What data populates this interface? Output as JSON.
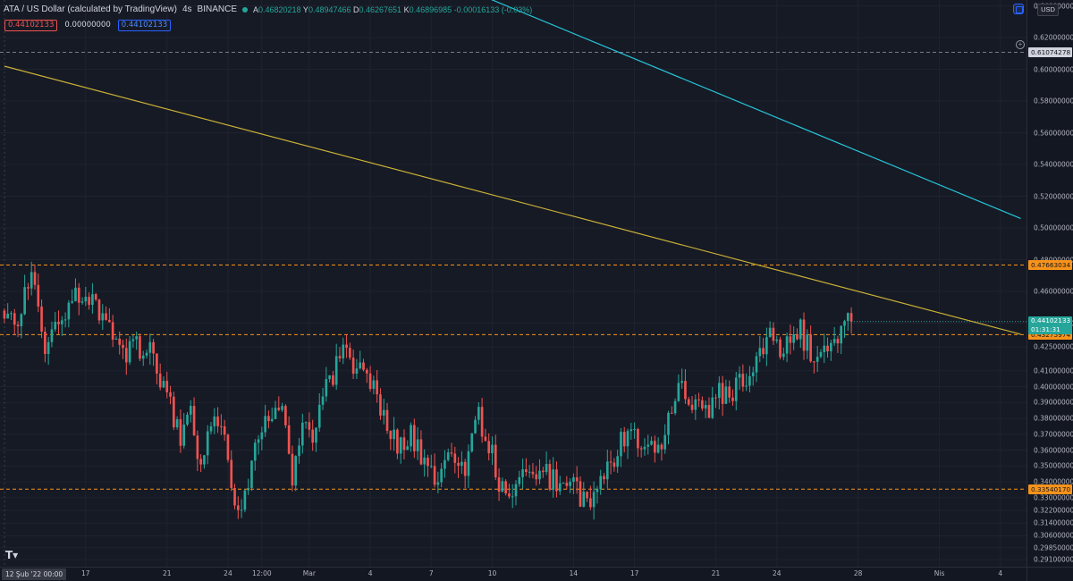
{
  "legend": {
    "symbol": "ATA / US Dollar (calculated by TradingView)",
    "interval": "4s",
    "exchange": "BINANCE",
    "open_label": "A",
    "open": "0.46820218",
    "high_label": "Y",
    "high": "0.48947466",
    "low_label": "D",
    "low": "0.46267651",
    "close_label": "K",
    "close": "0.46896985",
    "change": "-0.00016133 (-0.03%)"
  },
  "indicator_row": [
    "0.44102133",
    "0.00000000",
    "0.44102133"
  ],
  "currency_button": "USD",
  "colors": {
    "up": "#26a69a",
    "down": "#ef5350",
    "trend1": "#c9b037",
    "trend2": "#26c6da",
    "level": "#f7931a"
  },
  "chart_data": {
    "type": "candlestick",
    "symbol": "ATA/USD",
    "ylim": [
      0.2865,
      0.6437
    ],
    "y_ticks": [
      "0.29100000",
      "0.29850000",
      "0.30600000",
      "0.31400000",
      "0.32200000",
      "0.33000000",
      "0.34000000",
      "0.35000000",
      "0.36000000",
      "0.37000000",
      "0.38000000",
      "0.39000000",
      "0.40000000",
      "0.41000000",
      "0.42500000",
      "0.44000000",
      "0.46000000",
      "0.48000000",
      "0.50000000",
      "0.52000000",
      "0.54000000",
      "0.56000000",
      "0.58000000",
      "0.60000000",
      "0.62000000",
      "0.64000000"
    ],
    "x_ticks": [
      {
        "label": "17",
        "bar": 24
      },
      {
        "label": "21",
        "bar": 48
      },
      {
        "label": "24",
        "bar": 66
      },
      {
        "label": "12:00",
        "bar": 76
      },
      {
        "label": "Mar",
        "bar": 90
      },
      {
        "label": "4",
        "bar": 108
      },
      {
        "label": "7",
        "bar": 126
      },
      {
        "label": "10",
        "bar": 144
      },
      {
        "label": "14",
        "bar": 168
      },
      {
        "label": "17",
        "bar": 186
      },
      {
        "label": "21",
        "bar": 210
      },
      {
        "label": "24",
        "bar": 228
      },
      {
        "label": "28",
        "bar": 252
      },
      {
        "label": "Nis",
        "bar": 276
      },
      {
        "label": "4",
        "bar": 294
      }
    ],
    "first_date_label": "12 Şub '22  00:00",
    "total_bars": 303,
    "horizontal_levels": [
      {
        "value": "0.61074278",
        "style": "white"
      },
      {
        "value": "0.47663034",
        "style": "orange"
      },
      {
        "value": "0.43275974",
        "style": "orange"
      },
      {
        "value": "0.33540170",
        "style": "orange"
      }
    ],
    "last_price": {
      "value": "0.44102133",
      "countdown": "01:31:31"
    },
    "trendlines": [
      {
        "name": "yellow",
        "p1": {
          "bar": 0,
          "value": 0.602
        },
        "p2": {
          "bar": 300,
          "value": 0.433
        }
      },
      {
        "name": "cyan",
        "p1": {
          "bar": 129,
          "value": 0.657
        },
        "p2": {
          "bar": 300,
          "value": 0.506
        }
      }
    ],
    "anchors": [
      [
        0,
        0.44
      ],
      [
        4,
        0.445
      ],
      [
        8,
        0.47
      ],
      [
        12,
        0.42
      ],
      [
        16,
        0.44
      ],
      [
        20,
        0.46
      ],
      [
        26,
        0.455
      ],
      [
        30,
        0.44
      ],
      [
        34,
        0.42
      ],
      [
        40,
        0.425
      ],
      [
        44,
        0.42
      ],
      [
        48,
        0.395
      ],
      [
        52,
        0.365
      ],
      [
        55,
        0.39
      ],
      [
        58,
        0.345
      ],
      [
        62,
        0.385
      ],
      [
        65,
        0.375
      ],
      [
        68,
        0.325
      ],
      [
        70,
        0.322
      ],
      [
        74,
        0.36
      ],
      [
        78,
        0.38
      ],
      [
        82,
        0.385
      ],
      [
        85,
        0.345
      ],
      [
        88,
        0.375
      ],
      [
        91,
        0.36
      ],
      [
        94,
        0.4
      ],
      [
        97,
        0.405
      ],
      [
        100,
        0.425
      ],
      [
        104,
        0.41
      ],
      [
        108,
        0.4
      ],
      [
        112,
        0.385
      ],
      [
        116,
        0.362
      ],
      [
        120,
        0.37
      ],
      [
        124,
        0.35
      ],
      [
        128,
        0.335
      ],
      [
        132,
        0.36
      ],
      [
        136,
        0.35
      ],
      [
        140,
        0.38
      ],
      [
        143,
        0.365
      ],
      [
        146,
        0.34
      ],
      [
        150,
        0.335
      ],
      [
        153,
        0.35
      ],
      [
        156,
        0.338
      ],
      [
        160,
        0.345
      ],
      [
        163,
        0.338
      ],
      [
        166,
        0.345
      ],
      [
        168,
        0.335
      ],
      [
        171,
        0.33
      ],
      [
        174,
        0.328
      ],
      [
        177,
        0.345
      ],
      [
        180,
        0.355
      ],
      [
        183,
        0.37
      ],
      [
        186,
        0.368
      ],
      [
        189,
        0.36
      ],
      [
        193,
        0.358
      ],
      [
        196,
        0.385
      ],
      [
        199,
        0.4
      ],
      [
        202,
        0.39
      ],
      [
        205,
        0.395
      ],
      [
        208,
        0.385
      ],
      [
        211,
        0.4
      ],
      [
        214,
        0.39
      ],
      [
        217,
        0.405
      ],
      [
        220,
        0.4
      ],
      [
        223,
        0.42
      ],
      [
        226,
        0.43
      ],
      [
        229,
        0.425
      ],
      [
        232,
        0.43
      ],
      [
        235,
        0.435
      ],
      [
        238,
        0.42
      ],
      [
        241,
        0.415
      ],
      [
        244,
        0.425
      ],
      [
        247,
        0.435
      ],
      [
        250,
        0.441
      ]
    ]
  }
}
